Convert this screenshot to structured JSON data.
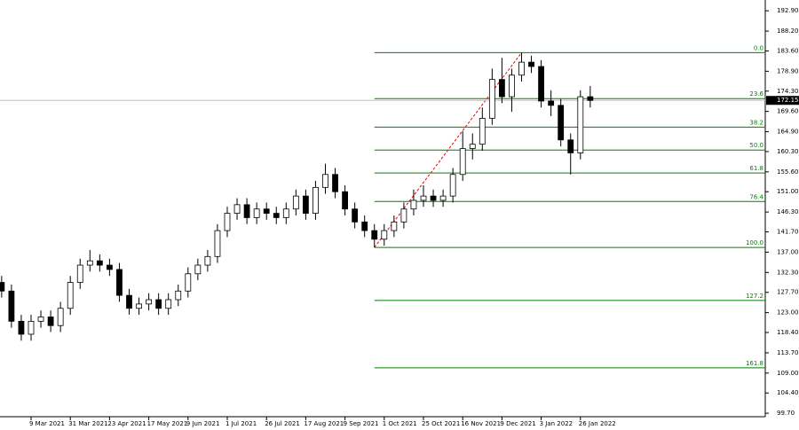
{
  "chart_data": {
    "type": "candlestick",
    "categories": [
      null,
      null,
      null,
      "9 Mar 2021",
      null,
      null,
      null,
      "31 Mar 2021",
      null,
      null,
      null,
      "23 Apr 2021",
      null,
      null,
      null,
      "17 May 2021",
      null,
      null,
      null,
      "9 Jun 2021",
      null,
      null,
      null,
      "1 Jul 2021",
      null,
      null,
      null,
      "26 Jul 2021",
      null,
      null,
      null,
      "17 Aug 2021",
      null,
      null,
      null,
      "9 Sep 2021",
      null,
      null,
      null,
      "1 Oct 2021",
      null,
      null,
      null,
      "25 Oct 2021",
      null,
      null,
      null,
      "16 Nov 2021",
      null,
      null,
      null,
      "9 Dec 2021",
      null,
      null,
      null,
      "3 Jan 2022",
      null,
      null,
      null,
      "26 Jan 2022",
      null
    ],
    "open": [
      130,
      128,
      121,
      118,
      121,
      122,
      120,
      124,
      130,
      134,
      135,
      134,
      133,
      127,
      124,
      125,
      126,
      124,
      126,
      128,
      132,
      134,
      136,
      142,
      146,
      148,
      145,
      147,
      146,
      145,
      147,
      150,
      146,
      152,
      155,
      151,
      147,
      144,
      142,
      140,
      142,
      144,
      147,
      149,
      150,
      149,
      150,
      155,
      161,
      162,
      168,
      177,
      173,
      178,
      181,
      180,
      172,
      171,
      163,
      160,
      173
    ],
    "high": [
      131.5,
      129.5,
      122.5,
      122.5,
      123.5,
      123.5,
      125.5,
      131.5,
      135.5,
      137.5,
      136.5,
      135.5,
      134.5,
      128.5,
      126.5,
      127.5,
      127.5,
      127.5,
      129.5,
      133.5,
      135.5,
      137.5,
      143.5,
      147.5,
      149.5,
      149.5,
      148.5,
      148.5,
      147.5,
      148.5,
      151.5,
      151.5,
      153.5,
      157.5,
      156.5,
      152.5,
      148.5,
      145.5,
      143.5,
      143.5,
      145.5,
      148.5,
      151.5,
      152.5,
      151.5,
      151.5,
      156.5,
      165,
      164.5,
      170.5,
      179.5,
      182,
      179.5,
      183.2,
      182.5,
      181.5,
      174.5,
      172.5,
      164.5,
      174.5,
      175.5
    ],
    "low": [
      126.5,
      119.5,
      116.5,
      116.5,
      119.5,
      118.5,
      118.5,
      122.5,
      128.5,
      132.5,
      132.5,
      131.5,
      125.5,
      122.5,
      122.5,
      123.5,
      122.5,
      122.5,
      124.5,
      126.5,
      130.5,
      132.5,
      134.5,
      140.5,
      144.5,
      143.5,
      143.5,
      144.5,
      143.5,
      143.5,
      145.5,
      144.5,
      144.5,
      150.5,
      149.5,
      145.5,
      142.5,
      140.5,
      138.1,
      138.5,
      140.5,
      142.5,
      145.5,
      147.5,
      147.5,
      147.5,
      148.5,
      153.5,
      158.5,
      160.5,
      166.5,
      171.5,
      169.5,
      176.5,
      178.5,
      170.5,
      168.5,
      161.5,
      155,
      158.5,
      170.5
    ],
    "close": [
      128,
      121,
      118,
      121,
      122,
      120,
      124,
      130,
      134,
      135,
      134,
      133,
      127,
      124,
      125,
      126,
      124,
      126,
      128,
      132,
      134,
      136,
      142,
      146,
      148,
      145,
      147,
      146,
      145,
      147,
      150,
      146,
      152,
      155,
      151,
      147,
      144,
      142,
      140,
      142,
      144,
      147,
      149,
      150,
      149,
      150,
      155,
      161,
      162,
      168,
      177,
      173,
      178,
      181,
      180,
      172,
      171,
      163,
      160,
      173,
      172.15
    ],
    "ylim": [
      98.9,
      195.4
    ],
    "yticks": [
      {
        "value": 192.9,
        "label": "192.90"
      },
      {
        "value": 188.2,
        "label": "188.20"
      },
      {
        "value": 183.6,
        "label": "183.60"
      },
      {
        "value": 178.9,
        "label": "178.90"
      },
      {
        "value": 174.3,
        "label": "174.30"
      },
      {
        "value": 169.6,
        "label": "169.60"
      },
      {
        "value": 164.9,
        "label": "164.90"
      },
      {
        "value": 160.3,
        "label": "160.30"
      },
      {
        "value": 155.6,
        "label": "155.60"
      },
      {
        "value": 151,
        "label": "151.00"
      },
      {
        "value": 146.3,
        "label": "146.30"
      },
      {
        "value": 141.7,
        "label": "141.70"
      },
      {
        "value": 137,
        "label": "137.00"
      },
      {
        "value": 132.3,
        "label": "132.30"
      },
      {
        "value": 127.7,
        "label": "127.70"
      },
      {
        "value": 123,
        "label": "123.00"
      },
      {
        "value": 118.4,
        "label": "118.40"
      },
      {
        "value": 113.7,
        "label": "113.70"
      },
      {
        "value": 109,
        "label": "109.00"
      },
      {
        "value": 104.4,
        "label": "104.40"
      },
      {
        "value": 99.7,
        "label": "99.70"
      }
    ],
    "fib_levels": [
      {
        "value": 183.2,
        "label": "0.0"
      },
      {
        "value": 172.56,
        "label": "23.6"
      },
      {
        "value": 165.97,
        "label": "38.2"
      },
      {
        "value": 160.65,
        "label": "50.0"
      },
      {
        "value": 155.33,
        "label": "61.8"
      },
      {
        "value": 148.74,
        "label": "76.4"
      },
      {
        "value": 138.1,
        "label": "100.0"
      },
      {
        "value": 125.83,
        "label": "127.2"
      },
      {
        "value": 110.23,
        "label": "161.8"
      }
    ],
    "fib_color": "#008000",
    "last_price": 172.15
  }
}
